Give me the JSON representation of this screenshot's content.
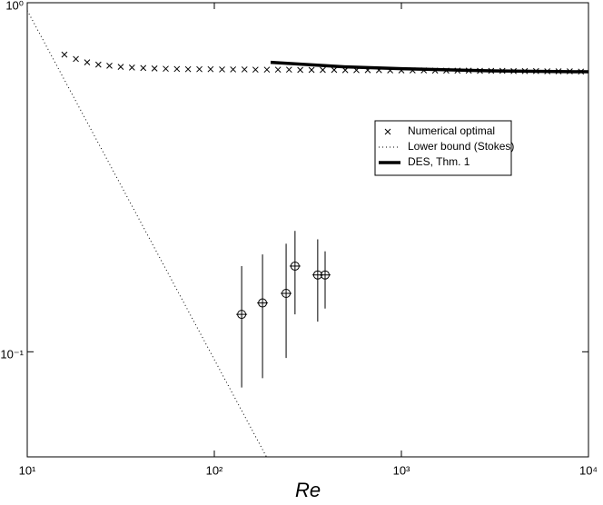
{
  "chart_data": {
    "type": "line",
    "xlabel": "Re",
    "xscale": "log",
    "yscale": "log",
    "xlim": [
      10,
      10000
    ],
    "ylim": [
      0.05,
      1
    ],
    "xticks": [
      {
        "value": 10,
        "label": "10¹"
      },
      {
        "value": 100,
        "label": "10²"
      },
      {
        "value": 1000,
        "label": "10³"
      },
      {
        "value": 10000,
        "label": "10⁴"
      }
    ],
    "yticks": [
      {
        "value": 0.1,
        "label": "10⁻¹"
      },
      {
        "value": 1,
        "label": "10⁰"
      }
    ],
    "legend": "center right",
    "series": [
      {
        "name": "Numerical optimal",
        "color": "#000000",
        "style": "cross",
        "x": [
          15.8,
          18.2,
          20.9,
          24.0,
          27.5,
          31.6,
          36.3,
          41.7,
          47.9,
          55.0,
          63.1,
          72.4,
          83.2,
          95.5,
          110,
          126,
          145,
          166,
          191,
          219,
          251,
          288,
          331,
          380,
          437,
          501,
          575,
          661,
          759,
          871,
          1000,
          1148,
          1318,
          1514,
          1738,
          1995,
          2291,
          2630,
          3020,
          3467,
          3981,
          4571,
          5248,
          6026,
          6918,
          7943,
          9120
        ],
        "values": [
          0.71,
          0.69,
          0.675,
          0.665,
          0.66,
          0.655,
          0.652,
          0.65,
          0.648,
          0.647,
          0.646,
          0.645,
          0.645,
          0.645,
          0.644,
          0.644,
          0.644,
          0.643,
          0.643,
          0.643,
          0.643,
          0.642,
          0.642,
          0.642,
          0.642,
          0.641,
          0.641,
          0.641,
          0.641,
          0.64,
          0.64,
          0.64,
          0.64,
          0.639,
          0.639,
          0.639,
          0.639,
          0.638,
          0.638,
          0.638,
          0.637,
          0.637,
          0.637,
          0.636,
          0.636,
          0.636,
          0.635
        ]
      },
      {
        "name": "Lower bound (Stokes)",
        "color": "#000000",
        "style": "dotted",
        "x": [
          10,
          190
        ],
        "values": [
          0.95,
          0.05
        ]
      },
      {
        "name": "DES, Thm. 1",
        "color": "#000000",
        "style": "thick",
        "x": [
          200,
          500,
          1000,
          3000,
          10000
        ],
        "values": [
          0.675,
          0.655,
          0.647,
          0.638,
          0.634
        ]
      },
      {
        "color": "#000000",
        "style": "errorbar",
        "x": [
          140,
          181,
          242,
          270,
          357,
          391
        ],
        "values": [
          0.128,
          0.138,
          0.147,
          0.176,
          0.166,
          0.166
        ],
        "lower": [
          0.079,
          0.084,
          0.096,
          0.128,
          0.122,
          0.133
        ],
        "upper": [
          0.176,
          0.19,
          0.204,
          0.222,
          0.21,
          0.194
        ]
      }
    ]
  }
}
